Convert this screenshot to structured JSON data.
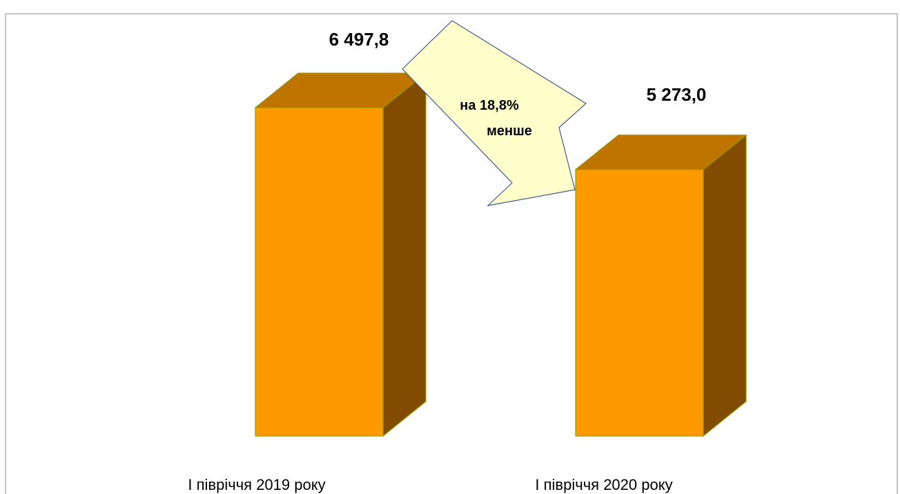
{
  "chart_data": {
    "type": "bar",
    "categories": [
      "І півріччя 2019 року",
      "І півріччя 2020 року"
    ],
    "values": [
      6497.8,
      5273.0
    ],
    "value_labels": [
      "6 497,8",
      "5 273,0"
    ],
    "annotation": {
      "line1": "на 18,8%",
      "line2": "менше"
    },
    "ylim": [
      0,
      6497.8
    ],
    "grid": false,
    "legend": "none",
    "colors": {
      "bar_front": "#FF9900",
      "bar_top": "#C07400",
      "bar_side": "#824C00",
      "bar_edge": "#9A9A00",
      "arrow_fill": "#FFFFCC",
      "arrow_edge": "#3F5A8A",
      "frame": "#8C8C8C"
    }
  }
}
